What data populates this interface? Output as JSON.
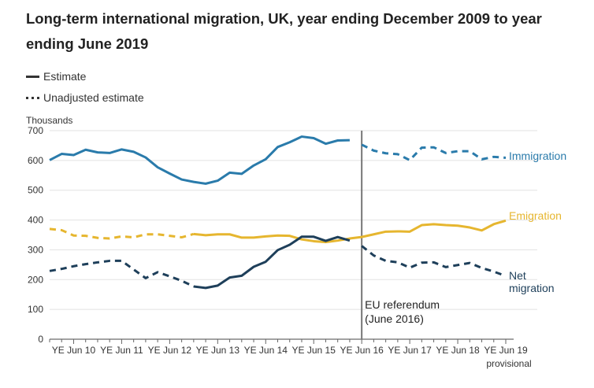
{
  "title": "Long-term international migration, UK, year ending December 2009 to year ending June 2019",
  "legend": {
    "estimate": "Estimate",
    "unadjusted": "Unadjusted estimate"
  },
  "chart_data": {
    "type": "line",
    "ylabel": "Thousands",
    "ylim": [
      0,
      700
    ],
    "yticks": [
      0,
      100,
      200,
      300,
      400,
      500,
      600,
      700
    ],
    "xtick_labels": [
      "YE Jun 10",
      "YE Jun 11",
      "YE Jun 12",
      "YE Jun 13",
      "YE Jun 14",
      "YE Jun 15",
      "YE Jun 16",
      "YE Jun 17",
      "YE Jun 18",
      "YE Jun 19"
    ],
    "xtick_sublabel": "provisional",
    "x_quarters": [
      "YE Dec 09",
      "YE Mar 10",
      "YE Jun 10",
      "YE Sep 10",
      "YE Dec 10",
      "YE Mar 11",
      "YE Jun 11",
      "YE Sep 11",
      "YE Dec 11",
      "YE Mar 12",
      "YE Jun 12",
      "YE Sep 12",
      "YE Dec 12",
      "YE Mar 13",
      "YE Jun 13",
      "YE Sep 13",
      "YE Dec 13",
      "YE Mar 14",
      "YE Jun 14",
      "YE Sep 14",
      "YE Dec 14",
      "YE Mar 15",
      "YE Jun 15",
      "YE Sep 15",
      "YE Dec 15",
      "YE Mar 16",
      "YE Jun 16",
      "YE Sep 16",
      "YE Dec 16",
      "YE Mar 17",
      "YE Jun 17",
      "YE Sep 17",
      "YE Dec 17",
      "YE Mar 18",
      "YE Jun 18",
      "YE Sep 18",
      "YE Dec 18",
      "YE Mar 19",
      "YE Jun 19"
    ],
    "grid": true,
    "series": [
      {
        "name": "Immigration",
        "color": "#2a7bab",
        "estimate": [
          601,
          622,
          618,
          636,
          627,
          625,
          637,
          629,
          610,
          577,
          556,
          536,
          528,
          522,
          532,
          559,
          555,
          583,
          604,
          645,
          661,
          680,
          675,
          656,
          667,
          668
        ],
        "unadjusted": [
          null,
          null,
          null,
          null,
          null,
          null,
          null,
          null,
          null,
          null,
          null,
          null,
          null,
          null,
          null,
          null,
          null,
          null,
          null,
          null,
          null,
          null,
          null,
          null,
          null,
          null,
          653,
          633,
          624,
          621,
          601,
          643,
          644,
          625,
          631,
          631,
          604,
          612,
          609
        ]
      },
      {
        "name": "Emigration",
        "color": "#e6b62f",
        "estimate": [
          null,
          null,
          null,
          null,
          null,
          null,
          null,
          null,
          null,
          null,
          null,
          null,
          353,
          349,
          352,
          352,
          341,
          341,
          345,
          348,
          347,
          335,
          329,
          326,
          331,
          338,
          343,
          352,
          361,
          362,
          361,
          383,
          386,
          383,
          381,
          375,
          365,
          386,
          398
        ],
        "unadjusted": [
          370,
          366,
          348,
          347,
          340,
          338,
          345,
          342,
          352,
          352,
          347,
          342,
          353
        ]
      },
      {
        "name": "Net migration",
        "color": "#1e3f5a",
        "estimate": [
          null,
          null,
          null,
          null,
          null,
          null,
          null,
          null,
          null,
          null,
          null,
          null,
          177,
          172,
          180,
          207,
          213,
          243,
          260,
          299,
          317,
          344,
          344,
          330,
          343,
          331
        ],
        "unadjusted": [
          229,
          236,
          245,
          252,
          258,
          263,
          263,
          234,
          205,
          225,
          211,
          196,
          177,
          null,
          null,
          null,
          null,
          null,
          null,
          null,
          null,
          null,
          null,
          null,
          null,
          null,
          313,
          281,
          263,
          258,
          240,
          257,
          258,
          242,
          249,
          256,
          239,
          227,
          212
        ]
      }
    ],
    "series_labels": {
      "immigration": "Immigration",
      "emigration": "Emigration",
      "net_line1": "Net",
      "net_line2": "migration"
    },
    "annotation": {
      "x_quarter": "YE Jun 16",
      "line1": "EU referendum",
      "line2": "(June 2016)"
    }
  }
}
